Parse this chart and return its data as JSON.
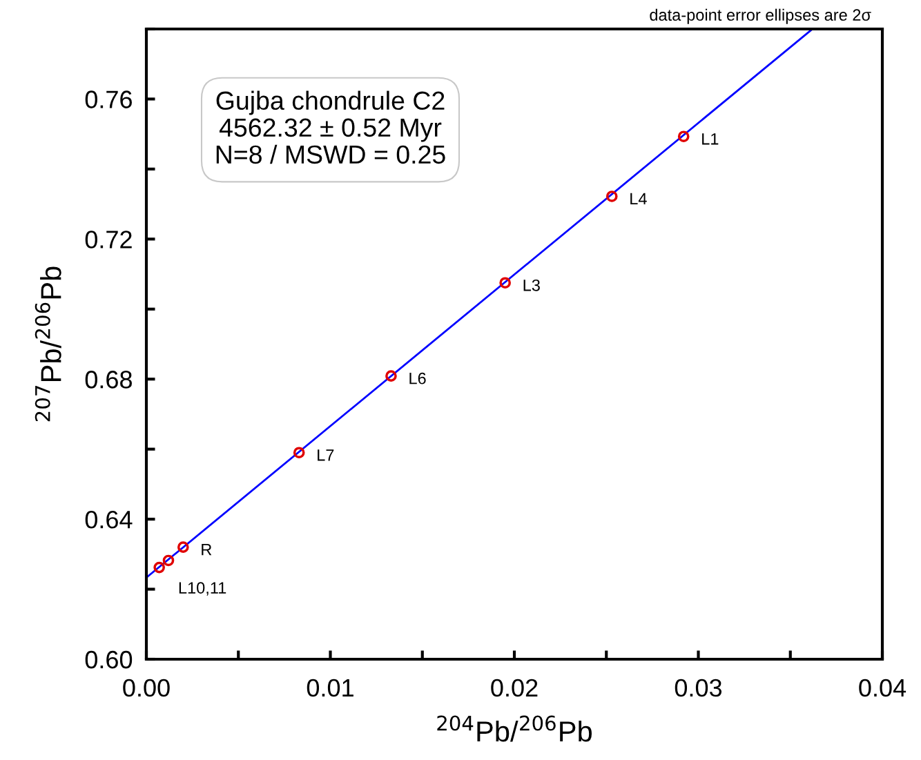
{
  "chart_data": {
    "type": "scatter",
    "xlabel": "$^{204}$Pb/$^{206}$Pb",
    "ylabel": "$^{207}$Pb/$^{206}$Pb",
    "xlim": [
      0,
      0.04
    ],
    "ylim": [
      0.6,
      0.78
    ],
    "xticks": [
      "0.00",
      {
        "value": 0.005,
        "label": null
      },
      0.01,
      {
        "value": 0.015,
        "label": null
      },
      0.02,
      {
        "value": 0.025,
        "label": null
      },
      0.03,
      {
        "value": 0.035,
        "label": null
      },
      0.04
    ],
    "yticks": [
      "0.60",
      {
        "value": 0.62,
        "label": null
      },
      0.64,
      {
        "value": 0.66,
        "label": null
      },
      0.68,
      {
        "value": 0.7,
        "label": null
      },
      0.72,
      {
        "value": 0.74,
        "label": null
      },
      0.76,
      {
        "value": 0.78,
        "label": null
      }
    ],
    "grid": false,
    "legend": false,
    "series": [
      {
        "type": "line",
        "marker": "none",
        "color": "#0000ff",
        "x": [
          0,
          0.0362
        ],
        "values": [
          0.6233,
          0.78
        ]
      },
      {
        "marker": "circle",
        "color": "#e00000",
        "x": [
          0.0292,
          0.0253,
          0.0195,
          0.0133,
          0.0083,
          0.002,
          0.0012,
          0.0007
        ],
        "values": [
          0.7493,
          0.7322,
          0.7075,
          0.6809,
          0.659,
          0.632,
          0.6282,
          0.6262
        ]
      }
    ],
    "annotations": [
      "Gujba chondrule C2\n4562.32 ± 0.52 Myr\nN=8 / MSWD = 0.25",
      "data-point error ellipses are 2σ",
      {
        "text": "L1",
        "x": 0.0292,
        "y": 0.7493
      },
      {
        "text": "L4",
        "x": 0.0253,
        "y": 0.7322
      },
      {
        "text": "L3",
        "x": 0.0195,
        "y": 0.7075
      },
      {
        "text": "L6",
        "x": 0.0133,
        "y": 0.6809
      },
      {
        "text": "L7",
        "x": 0.0083,
        "y": 0.659
      },
      {
        "text": "R",
        "x": 0.002,
        "y": 0.632
      },
      {
        "text": "L10,11",
        "x": 0.0012,
        "y": 0.6282
      }
    ]
  }
}
